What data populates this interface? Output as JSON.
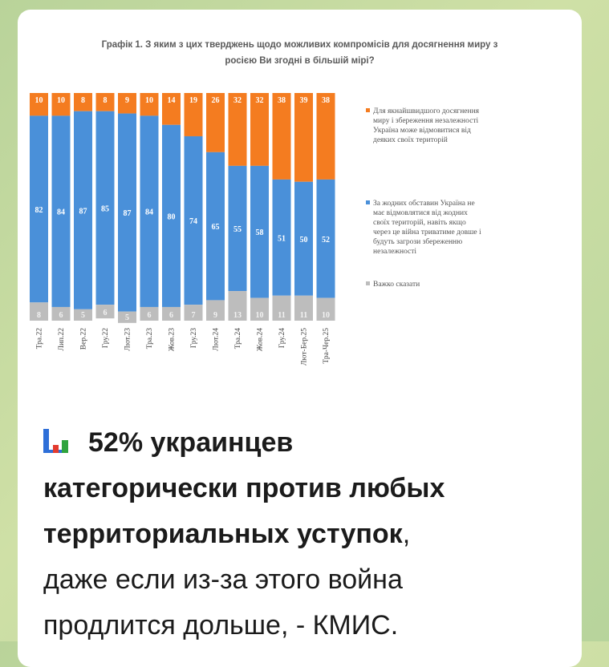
{
  "chart_data": {
    "type": "bar",
    "stacked": true,
    "title": "Графік 1. З яким з цих тверджень щодо можливих компромісів для досягнення миру з росією Ви згодні в більшій мірі?",
    "title_lines": [
      "Графік 1. З яким з цих тверджень щодо можливих компромісів для досягнення миру з",
      "росією Ви згодні в більшій мірі?"
    ],
    "categories": [
      "Тра.22",
      "Лип.22",
      "Вер.22",
      "Гру.22",
      "Лют.23",
      "Тра.23",
      "Жов.23",
      "Гру.23",
      "Лют.24",
      "Тра.24",
      "Жов.24",
      "Гру.24",
      "Лют-Бер.25",
      "Тра-Чер.25"
    ],
    "ylim": [
      0,
      100
    ],
    "legend_position": "right",
    "series": [
      {
        "name": "Важко сказати",
        "color": "#bdbdbd",
        "values": [
          8,
          6,
          5,
          6,
          5,
          6,
          6,
          7,
          9,
          13,
          10,
          11,
          11,
          10
        ]
      },
      {
        "name": "За жодних обставин Україна не має відмовлятися від жодних своїх територій, навіть якщо через це війна триватиме довше і будуть загрози збереженню незалежності",
        "color": "#4a90d9",
        "values": [
          82,
          84,
          87,
          85,
          87,
          84,
          80,
          74,
          65,
          55,
          58,
          51,
          50,
          52
        ]
      },
      {
        "name": "Для якнайшвидшого досягнення миру і збереження незалежності Україна може відмовитися від деяких своїх територій",
        "color": "#f47c20",
        "values": [
          10,
          10,
          8,
          8,
          9,
          10,
          14,
          19,
          26,
          32,
          32,
          38,
          39,
          38
        ]
      }
    ],
    "legend_lines": [
      [
        "Для якнайшвидшого досягнення",
        "миру і збереження незалежності",
        "Україна може відмовитися від",
        "деяких своїх територій"
      ],
      [
        "За жодних обставин Україна не",
        "має відмовлятися від жодних",
        "своїх територій, навіть якщо",
        "через це війна триватиме довше і",
        "будуть загрози збереженню",
        "незалежності"
      ],
      [
        "Важко сказати"
      ]
    ]
  },
  "post": {
    "emoji_name": "bar-chart-icon",
    "line1": "52% украинцев",
    "line2": "категорически против любых",
    "line3": "территориальных уступок",
    "line3_suffix": ",",
    "line4": "даже если из-за этого война",
    "line5": "продлится дольше, - КМИС."
  }
}
